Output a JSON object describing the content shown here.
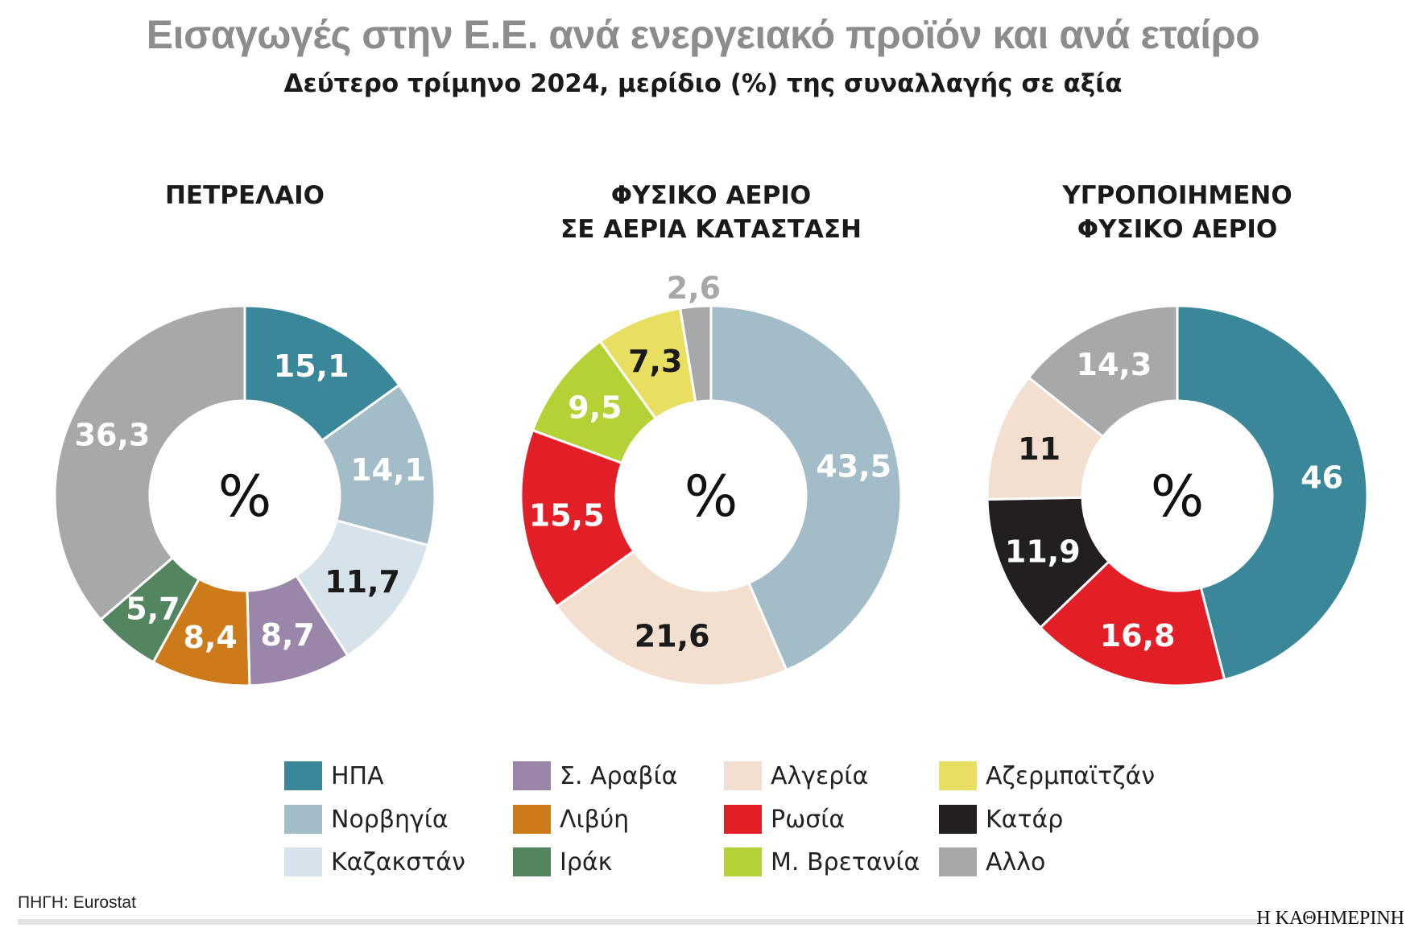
{
  "title": "Εισαγωγές στην Ε.Ε. ανά ενεργειακό προϊόν και ανά εταίρο",
  "subtitle": "Δεύτερο τρίμηνο 2024, μερίδιο (%) της συναλλαγής σε αξία",
  "colors": {
    "usa": "#3a8799",
    "norway": "#a2bcc8",
    "kazakhstan": "#d6e3ea",
    "saudi": "#9a86a8",
    "libya": "#cd7a1a",
    "iraq": "#548561",
    "algeria": "#f2dfd0",
    "russia": "#e21e26",
    "uk": "#b4d235",
    "azerbaijan": "#e8df62",
    "qatar": "#231f20",
    "other": "#a7a8aa"
  },
  "legend": [
    {
      "key": "usa",
      "label": "ΗΠΑ"
    },
    {
      "key": "norway",
      "label": "Νορβηγία"
    },
    {
      "key": "kazakhstan",
      "label": "Καζακστάν"
    },
    {
      "key": "saudi",
      "label": "Σ. Αραβία"
    },
    {
      "key": "libya",
      "label": "Λιβύη"
    },
    {
      "key": "iraq",
      "label": "Ιράκ"
    },
    {
      "key": "algeria",
      "label": "Αλγερία"
    },
    {
      "key": "russia",
      "label": "Ρωσία"
    },
    {
      "key": "uk",
      "label": "Μ. Βρετανία"
    },
    {
      "key": "azerbaijan",
      "label": "Αζερμπαϊτζάν"
    },
    {
      "key": "qatar",
      "label": "Κατάρ"
    },
    {
      "key": "other",
      "label": "Αλλο"
    }
  ],
  "chart_data": [
    {
      "type": "pie",
      "donut": true,
      "title": "ΠΕΤΡΕΛΑΙΟ",
      "center_label": "%",
      "slices": [
        {
          "key": "usa",
          "value": 15.1,
          "label": "15,1"
        },
        {
          "key": "norway",
          "value": 14.1,
          "label": "14,1"
        },
        {
          "key": "kazakhstan",
          "value": 11.7,
          "label": "11,7"
        },
        {
          "key": "saudi",
          "value": 8.7,
          "label": "8,7"
        },
        {
          "key": "libya",
          "value": 8.4,
          "label": "8,4"
        },
        {
          "key": "iraq",
          "value": 5.7,
          "label": "5,7"
        },
        {
          "key": "other",
          "value": 36.3,
          "label": "36,3"
        }
      ]
    },
    {
      "type": "pie",
      "donut": true,
      "title": "ΦΥΣΙΚΟ ΑΕΡΙΟ ΣΕ ΑΕΡΙΑ ΚΑΤΑΣΤΑΣΗ",
      "center_label": "%",
      "slices": [
        {
          "key": "norway",
          "value": 43.5,
          "label": "43,5"
        },
        {
          "key": "algeria",
          "value": 21.6,
          "label": "21,6"
        },
        {
          "key": "russia",
          "value": 15.5,
          "label": "15,5"
        },
        {
          "key": "uk",
          "value": 9.5,
          "label": "9,5"
        },
        {
          "key": "azerbaijan",
          "value": 7.3,
          "label": "7,3"
        },
        {
          "key": "other",
          "value": 2.6,
          "label": "2,6"
        }
      ]
    },
    {
      "type": "pie",
      "donut": true,
      "title": "ΥΓΡΟΠΟΙΗΜΕΝΟ ΦΥΣΙΚΟ ΑΕΡΙΟ",
      "center_label": "%",
      "slices": [
        {
          "key": "usa",
          "value": 46,
          "label": "46"
        },
        {
          "key": "russia",
          "value": 16.8,
          "label": "16,8"
        },
        {
          "key": "qatar",
          "value": 11.9,
          "label": "11,9"
        },
        {
          "key": "algeria",
          "value": 11,
          "label": "11"
        },
        {
          "key": "other",
          "value": 14.3,
          "label": "14,3"
        }
      ]
    }
  ],
  "chart_titles": [
    [
      "ΠΕΤΡΕΛΑΙΟ"
    ],
    [
      "ΦΥΣΙΚΟ ΑΕΡΙΟ",
      "ΣΕ ΑΕΡΙΑ ΚΑΤΑΣΤΑΣΗ"
    ],
    [
      "ΥΓΡΟΠΟΙΗΜΕΝΟ",
      "ΦΥΣΙΚΟ ΑΕΡΙΟ"
    ]
  ],
  "source": "ΠΗΓΗ: Eurostat",
  "logo": "Η ΚΑΘΗΜΕΡΙΝΗ"
}
